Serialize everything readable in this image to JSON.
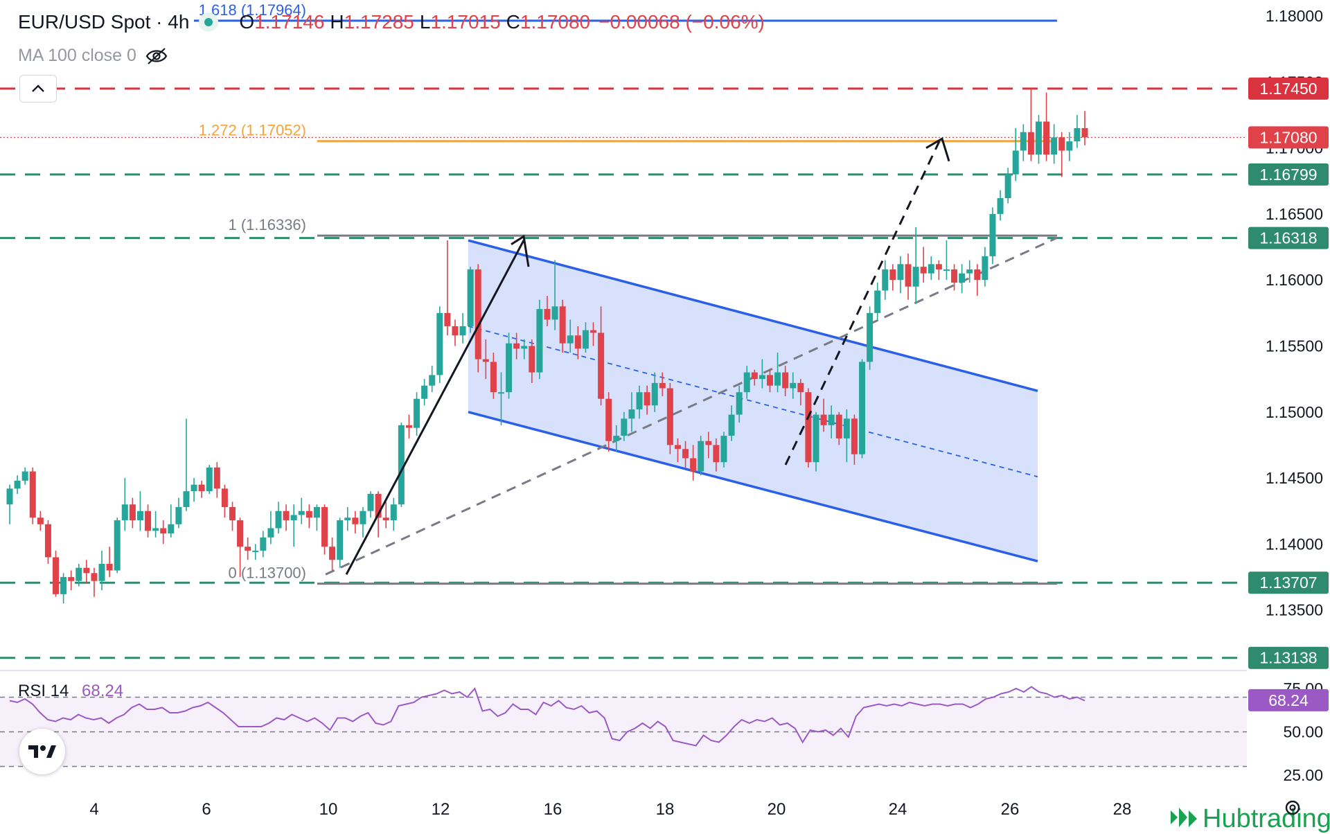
{
  "header": {
    "symbol": "EUR/USD Spot · 4h",
    "open_label": "O",
    "open": "1.17146",
    "high_label": "H",
    "high": "1.17285",
    "low_label": "L",
    "low": "1.17015",
    "close_label": "C",
    "close": "1.17080",
    "change": "−0.00068 (−0.06%)",
    "ma_label": "MA 100 close 0"
  },
  "colors": {
    "up": "#26a69a",
    "down": "#e0424a",
    "channel": "#2a5fe8",
    "fib": "#f6a33a",
    "resistance": "#d8333e",
    "support": "#2e8b6e",
    "rsi": "#9b59c6"
  },
  "icons": [
    "eye-off-icon",
    "chevron-up-icon",
    "tradingview-logo-icon",
    "hubtrading-logo-icon",
    "gear-icon"
  ],
  "brand": "Hubtrading",
  "chart_data": [
    {
      "type": "candlestick",
      "title": "EUR/USD Spot · 4h",
      "ylim": [
        1.1265,
        1.181
      ],
      "y_ticks": [
        "1.18000",
        "1.17500",
        "1.17000",
        "1.16500",
        "1.16000",
        "1.15500",
        "1.15000",
        "1.14500",
        "1.14000",
        "1.13500"
      ],
      "x_ticks": [
        "4",
        "6",
        "10",
        "12",
        "16",
        "18",
        "20",
        "24",
        "26",
        "28"
      ],
      "candles": [
        [
          1.143,
          1.1442,
          1.1415,
          1.1445
        ],
        [
          1.1442,
          1.1448,
          1.1438,
          1.1452
        ],
        [
          1.1448,
          1.1455,
          1.1445,
          1.1458
        ],
        [
          1.1455,
          1.142,
          1.1415,
          1.1458
        ],
        [
          1.142,
          1.1415,
          1.141,
          1.1425
        ],
        [
          1.1415,
          1.139,
          1.1385,
          1.1418
        ],
        [
          1.139,
          1.1362,
          1.136,
          1.1395
        ],
        [
          1.1362,
          1.1375,
          1.1355,
          1.1378
        ],
        [
          1.1375,
          1.1372,
          1.1365,
          1.138
        ],
        [
          1.1372,
          1.1382,
          1.1368,
          1.1385
        ],
        [
          1.1382,
          1.1378,
          1.137,
          1.1388
        ],
        [
          1.1378,
          1.1372,
          1.136,
          1.1382
        ],
        [
          1.1372,
          1.1385,
          1.1365,
          1.1395
        ],
        [
          1.1385,
          1.138,
          1.1375,
          1.1398
        ],
        [
          1.138,
          1.1418,
          1.1378,
          1.142
        ],
        [
          1.1418,
          1.143,
          1.141,
          1.145
        ],
        [
          1.143,
          1.1418,
          1.1412,
          1.1435
        ],
        [
          1.1418,
          1.1425,
          1.141,
          1.144
        ],
        [
          1.1425,
          1.141,
          1.1405,
          1.143
        ],
        [
          1.141,
          1.1412,
          1.1405,
          1.1425
        ],
        [
          1.1412,
          1.1408,
          1.14,
          1.1418
        ],
        [
          1.1408,
          1.1415,
          1.1405,
          1.143
        ],
        [
          1.1415,
          1.1428,
          1.1412,
          1.1435
        ],
        [
          1.1428,
          1.144,
          1.1425,
          1.1495
        ],
        [
          1.144,
          1.1445,
          1.1432,
          1.145
        ],
        [
          1.1445,
          1.144,
          1.1435,
          1.1448
        ],
        [
          1.144,
          1.1458,
          1.1438,
          1.146
        ],
        [
          1.1458,
          1.1442,
          1.1435,
          1.1462
        ],
        [
          1.1442,
          1.1428,
          1.142,
          1.1445
        ],
        [
          1.1428,
          1.1418,
          1.141,
          1.1432
        ],
        [
          1.1418,
          1.1398,
          1.1375,
          1.142
        ],
        [
          1.1398,
          1.1395,
          1.1388,
          1.1405
        ],
        [
          1.1395,
          1.1395,
          1.1388,
          1.14
        ],
        [
          1.1395,
          1.1405,
          1.139,
          1.141
        ],
        [
          1.1405,
          1.1412,
          1.14,
          1.1425
        ],
        [
          1.1412,
          1.1425,
          1.1408,
          1.1432
        ],
        [
          1.1425,
          1.1418,
          1.141,
          1.143
        ],
        [
          1.1418,
          1.1422,
          1.1398,
          1.143
        ],
        [
          1.1422,
          1.1425,
          1.1415,
          1.1435
        ],
        [
          1.1425,
          1.142,
          1.1412,
          1.143
        ],
        [
          1.142,
          1.1428,
          1.141,
          1.143
        ],
        [
          1.1428,
          1.1398,
          1.1392,
          1.143
        ],
        [
          1.1398,
          1.1388,
          1.138,
          1.1405
        ],
        [
          1.1388,
          1.1418,
          1.1382,
          1.142
        ],
        [
          1.1418,
          1.142,
          1.141,
          1.1428
        ],
        [
          1.142,
          1.1415,
          1.1408,
          1.1425
        ],
        [
          1.1415,
          1.1425,
          1.1405,
          1.1428
        ],
        [
          1.1425,
          1.1438,
          1.142,
          1.144
        ],
        [
          1.1438,
          1.142,
          1.1405,
          1.144
        ],
        [
          1.142,
          1.1418,
          1.1412,
          1.1432
        ],
        [
          1.1418,
          1.143,
          1.141,
          1.1435
        ],
        [
          1.143,
          1.149,
          1.1428,
          1.1492
        ],
        [
          1.149,
          1.1488,
          1.148,
          1.1498
        ],
        [
          1.1488,
          1.151,
          1.1482,
          1.1515
        ],
        [
          1.151,
          1.152,
          1.1505,
          1.1525
        ],
        [
          1.152,
          1.1528,
          1.1515,
          1.1535
        ],
        [
          1.1528,
          1.1575,
          1.1522,
          1.158
        ],
        [
          1.1575,
          1.1565,
          1.1558,
          1.163
        ],
        [
          1.1565,
          1.1558,
          1.155,
          1.157
        ],
        [
          1.1558,
          1.1565,
          1.1552,
          1.1575
        ],
        [
          1.1565,
          1.1608,
          1.156,
          1.161
        ],
        [
          1.1608,
          1.154,
          1.153,
          1.1612
        ],
        [
          1.154,
          1.1538,
          1.1525,
          1.1555
        ],
        [
          1.1538,
          1.1515,
          1.151,
          1.1545
        ],
        [
          1.1515,
          1.1515,
          1.149,
          1.153
        ],
        [
          1.1515,
          1.1552,
          1.151,
          1.156
        ],
        [
          1.1552,
          1.1548,
          1.154,
          1.156
        ],
        [
          1.1548,
          1.155,
          1.154,
          1.1555
        ],
        [
          1.155,
          1.153,
          1.1522,
          1.1555
        ],
        [
          1.153,
          1.1578,
          1.1525,
          1.1585
        ],
        [
          1.1578,
          1.157,
          1.1565,
          1.1588
        ],
        [
          1.157,
          1.158,
          1.1562,
          1.1615
        ],
        [
          1.158,
          1.1552,
          1.1545,
          1.1585
        ],
        [
          1.1552,
          1.1558,
          1.1545,
          1.157
        ],
        [
          1.1558,
          1.1548,
          1.154,
          1.1565
        ],
        [
          1.1548,
          1.1562,
          1.1545,
          1.1568
        ],
        [
          1.1562,
          1.156,
          1.155,
          1.1568
        ],
        [
          1.156,
          1.151,
          1.1505,
          1.158
        ],
        [
          1.151,
          1.1478,
          1.147,
          1.1515
        ],
        [
          1.1478,
          1.1482,
          1.147,
          1.149
        ],
        [
          1.1482,
          1.1495,
          1.1478,
          1.15
        ],
        [
          1.1495,
          1.1502,
          1.1485,
          1.1515
        ],
        [
          1.1502,
          1.1515,
          1.1495,
          1.152
        ],
        [
          1.1515,
          1.1505,
          1.1498,
          1.152
        ],
        [
          1.1505,
          1.1522,
          1.15,
          1.153
        ],
        [
          1.1522,
          1.1518,
          1.1512,
          1.153
        ],
        [
          1.1518,
          1.1475,
          1.1468,
          1.1522
        ],
        [
          1.1475,
          1.1472,
          1.1462,
          1.148
        ],
        [
          1.1472,
          1.1465,
          1.1458,
          1.1478
        ],
        [
          1.1465,
          1.1455,
          1.1448,
          1.1475
        ],
        [
          1.1455,
          1.1478,
          1.1452,
          1.1482
        ],
        [
          1.1478,
          1.1475,
          1.1465,
          1.1485
        ],
        [
          1.1475,
          1.1462,
          1.1455,
          1.148
        ],
        [
          1.1462,
          1.1482,
          1.1458,
          1.1485
        ],
        [
          1.1482,
          1.1498,
          1.1478,
          1.1505
        ],
        [
          1.1498,
          1.1515,
          1.1492,
          1.152
        ],
        [
          1.1515,
          1.153,
          1.151,
          1.1535
        ],
        [
          1.153,
          1.1525,
          1.152,
          1.1532
        ],
        [
          1.1525,
          1.1528,
          1.1518,
          1.154
        ],
        [
          1.1528,
          1.152,
          1.1515,
          1.1532
        ],
        [
          1.152,
          1.153,
          1.1515,
          1.1545
        ],
        [
          1.153,
          1.1518,
          1.1512,
          1.1535
        ],
        [
          1.1518,
          1.1522,
          1.151,
          1.153
        ],
        [
          1.1522,
          1.1515,
          1.1505,
          1.1525
        ],
        [
          1.1515,
          1.1462,
          1.1458,
          1.1518
        ],
        [
          1.1462,
          1.1498,
          1.1455,
          1.15
        ],
        [
          1.1498,
          1.149,
          1.1485,
          1.151
        ],
        [
          1.149,
          1.1498,
          1.148,
          1.1505
        ],
        [
          1.1498,
          1.148,
          1.1475,
          1.15
        ],
        [
          1.148,
          1.1495,
          1.1462,
          1.1502
        ],
        [
          1.1495,
          1.1468,
          1.146,
          1.1498
        ],
        [
          1.1468,
          1.1538,
          1.1465,
          1.154
        ],
        [
          1.1538,
          1.1575,
          1.1532,
          1.158
        ],
        [
          1.1575,
          1.1592,
          1.157,
          1.1598
        ],
        [
          1.1592,
          1.1608,
          1.1585,
          1.1615
        ],
        [
          1.1608,
          1.16,
          1.1592,
          1.1612
        ],
        [
          1.16,
          1.1612,
          1.159,
          1.1618
        ],
        [
          1.1612,
          1.1595,
          1.1585,
          1.162
        ],
        [
          1.1595,
          1.161,
          1.1582,
          1.164
        ],
        [
          1.161,
          1.1605,
          1.1598,
          1.1625
        ],
        [
          1.1605,
          1.1612,
          1.16,
          1.1618
        ],
        [
          1.1612,
          1.1608,
          1.16,
          1.1615
        ],
        [
          1.1608,
          1.1608,
          1.16,
          1.163
        ],
        [
          1.1608,
          1.1598,
          1.1592,
          1.1612
        ],
        [
          1.1598,
          1.1605,
          1.159,
          1.1612
        ],
        [
          1.1605,
          1.1608,
          1.1598,
          1.1615
        ],
        [
          1.1608,
          1.16,
          1.1588,
          1.1612
        ],
        [
          1.16,
          1.1618,
          1.1595,
          1.1625
        ],
        [
          1.1618,
          1.165,
          1.1612,
          1.1655
        ],
        [
          1.165,
          1.1662,
          1.1645,
          1.1668
        ],
        [
          1.1662,
          1.168,
          1.1658,
          1.1685
        ],
        [
          1.168,
          1.1698,
          1.1675,
          1.1715
        ],
        [
          1.1698,
          1.1712,
          1.169,
          1.1718
        ],
        [
          1.1712,
          1.1695,
          1.169,
          1.1745
        ],
        [
          1.1695,
          1.172,
          1.1688,
          1.1725
        ],
        [
          1.172,
          1.1695,
          1.169,
          1.1742
        ],
        [
          1.1695,
          1.1708,
          1.1688,
          1.1718
        ],
        [
          1.1708,
          1.1698,
          1.1678,
          1.1712
        ],
        [
          1.1698,
          1.1705,
          1.169,
          1.1712
        ],
        [
          1.1705,
          1.1715,
          1.17,
          1.1725
        ],
        [
          1.1715,
          1.1708,
          1.1702,
          1.1728
        ]
      ],
      "levels": [
        {
          "value": 1.1745,
          "label": "1.17450",
          "style": "dashed",
          "color": "resistance"
        },
        {
          "value": 1.16799,
          "label": "1.16799",
          "style": "dashed",
          "color": "support"
        },
        {
          "value": 1.16318,
          "label": "1.16318",
          "style": "dashed",
          "color": "support"
        },
        {
          "value": 1.13707,
          "label": "1.13707",
          "style": "dashed",
          "color": "support"
        },
        {
          "value": 1.13138,
          "label": "1.13138",
          "style": "dashed",
          "color": "support"
        }
      ],
      "last_price": {
        "value": 1.1708,
        "label": "1.17080"
      },
      "fibonacci": [
        {
          "ratio_label": "1.618 (1.17964)",
          "value": 1.17964,
          "color": "channel"
        },
        {
          "ratio_label": "1.272 (1.17052)",
          "value": 1.17052,
          "color": "fib"
        },
        {
          "ratio_label": "1 (1.16336)",
          "value": 1.16336,
          "color": "grey"
        },
        {
          "ratio_label": "0 (1.13700)",
          "value": 1.137,
          "color": "grey"
        }
      ]
    },
    {
      "type": "line",
      "title": "RSI 14",
      "last_value": "68.24",
      "ylim": [
        22,
        80
      ],
      "y_ticks": [
        "75.00",
        "50.00",
        "25.00"
      ],
      "guides": [
        70,
        50,
        30
      ],
      "values": [
        68,
        67,
        69,
        66,
        61,
        57,
        56,
        58,
        57,
        60,
        58,
        57,
        58,
        55,
        58,
        60,
        64,
        66,
        63,
        63,
        64,
        61,
        61,
        62,
        64,
        65,
        67,
        64,
        61,
        57,
        53,
        53,
        53,
        53,
        55,
        58,
        57,
        60,
        58,
        56,
        58,
        55,
        51,
        58,
        58,
        56,
        59,
        61,
        55,
        54,
        56,
        65,
        66,
        67,
        70,
        71,
        72,
        74,
        72,
        73,
        70,
        75,
        62,
        63,
        59,
        61,
        66,
        63,
        63,
        60,
        67,
        65,
        68,
        64,
        63,
        65,
        61,
        62,
        58,
        46,
        45,
        50,
        52,
        55,
        52,
        56,
        53,
        45,
        44,
        43,
        42,
        48,
        45,
        44,
        48,
        53,
        57,
        55,
        57,
        56,
        58,
        54,
        55,
        52,
        44,
        51,
        50,
        51,
        48,
        52,
        47,
        59,
        64,
        65,
        66,
        65,
        66,
        65,
        67,
        66,
        65,
        66,
        66,
        65,
        66,
        66,
        64,
        66,
        69,
        70,
        72,
        73,
        75,
        73,
        76,
        73,
        72,
        70,
        71,
        69,
        70,
        68
      ]
    }
  ]
}
